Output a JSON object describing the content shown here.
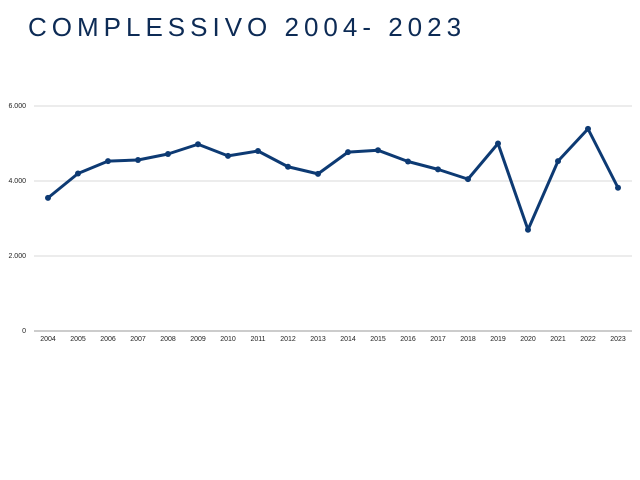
{
  "chart_data": {
    "type": "line",
    "title": "COMPLESSIVO 2004- 2023",
    "xlabel": "",
    "ylabel": "",
    "ylim": [
      0,
      6000
    ],
    "yticks": [
      0,
      2000,
      4000,
      6000
    ],
    "ytick_labels": [
      "0",
      "2.000",
      "4.000",
      "6.000"
    ],
    "grid": true,
    "legend": "none",
    "categories": [
      "2004",
      "2005",
      "2006",
      "2007",
      "2008",
      "2009",
      "2010",
      "2011",
      "2012",
      "2013",
      "2014",
      "2015",
      "2016",
      "2017",
      "2018",
      "2019",
      "2020",
      "2021",
      "2022",
      "2023"
    ],
    "series": [
      {
        "values": [
          3550,
          4200,
          4530,
          4560,
          4720,
          4980,
          4670,
          4800,
          4380,
          4190,
          4770,
          4820,
          4520,
          4310,
          4050,
          5000,
          2700,
          4530,
          5390,
          3820
        ],
        "color": "#0d3a73"
      }
    ]
  }
}
